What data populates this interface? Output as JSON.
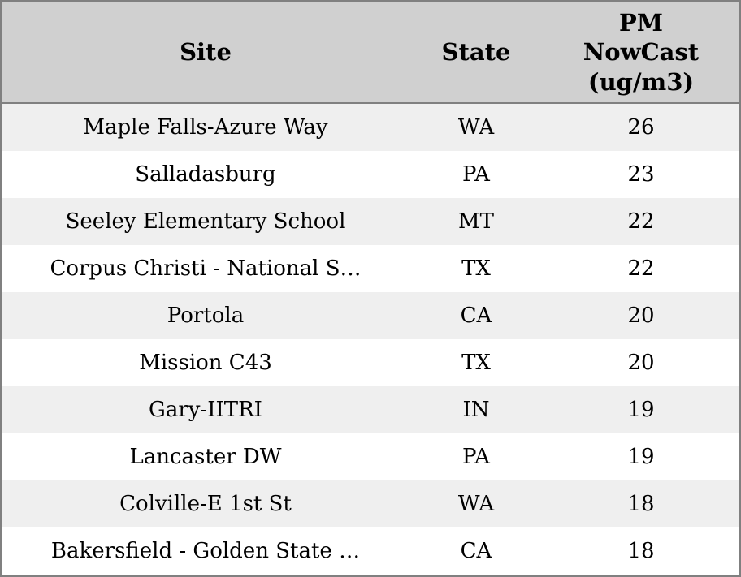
{
  "chart_data": {
    "type": "table",
    "title": "",
    "columns": [
      "Site",
      "State",
      "PM NowCast (ug/m3)"
    ],
    "rows": [
      [
        "Maple Falls-Azure Way",
        "WA",
        "26"
      ],
      [
        "Salladasburg",
        "PA",
        "23"
      ],
      [
        "Seeley Elementary School",
        "MT",
        "22"
      ],
      [
        "Corpus Christi - National S…",
        "TX",
        "22"
      ],
      [
        "Portola",
        "CA",
        "20"
      ],
      [
        "Mission C43",
        "TX",
        "20"
      ],
      [
        "Gary-IITRI",
        "IN",
        "19"
      ],
      [
        "Lancaster DW",
        "PA",
        "19"
      ],
      [
        "Colville-E 1st St",
        "WA",
        "18"
      ],
      [
        "Bakersfield - Golden State …",
        "CA",
        "18"
      ]
    ],
    "layout": {
      "striped": true,
      "stripe_color": "#efefef",
      "header_bg": "#d0d0d0",
      "border_color": "#808080",
      "text_color": "#000000",
      "alignment": "center"
    }
  }
}
